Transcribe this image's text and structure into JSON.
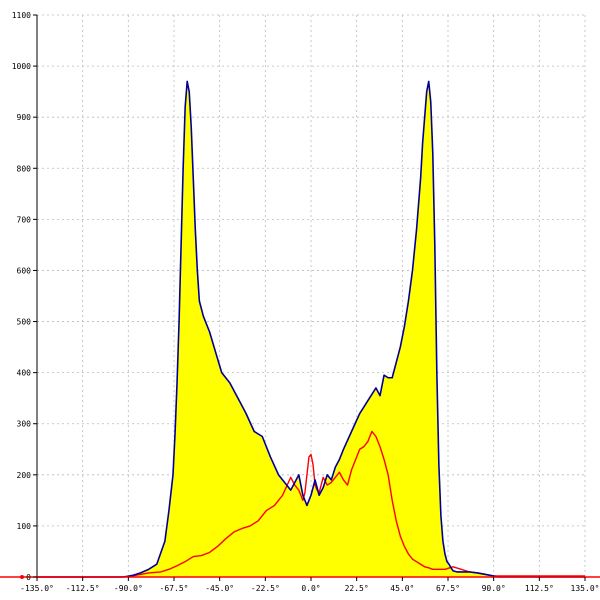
{
  "chart_data": {
    "type": "area",
    "title": "",
    "xlabel": "",
    "ylabel": "",
    "x_unit": "°",
    "xlim": [
      -135,
      135
    ],
    "ylim": [
      0,
      1100
    ],
    "x_ticks": [
      -135,
      -112.5,
      -90,
      -67.5,
      -45,
      -22.5,
      0,
      22.5,
      45,
      67.5,
      90,
      112.5,
      135
    ],
    "x_tick_labels": [
      "-135.0°",
      "-112.5°",
      "-90.0°",
      "-67.5°",
      "-45.0°",
      "-22.5°",
      "0.0°",
      "22.5°",
      "45.0°",
      "67.5°",
      "90.0°",
      "112.5°",
      "135.0°"
    ],
    "y_ticks": [
      0,
      100,
      200,
      300,
      400,
      500,
      600,
      700,
      800,
      900,
      1000,
      1100
    ],
    "y_tick_labels": [
      "0",
      "100",
      "200",
      "300",
      "400",
      "500",
      "600",
      "700",
      "800",
      "900",
      "1000",
      "1100"
    ],
    "grid": true,
    "legend": "none",
    "colors": {
      "fill": "#ffff00",
      "series1": "#000099",
      "series2": "#ff0000"
    },
    "series": [
      {
        "x": [
          -135,
          -92,
          -88,
          -84,
          -80,
          -76,
          -72,
          -70,
          -68,
          -67,
          -66,
          -65,
          -64,
          -63,
          -62,
          -61,
          -60,
          -59,
          -58,
          -57,
          -56,
          -55,
          -53,
          -50,
          -47,
          -44,
          -40,
          -36,
          -32,
          -28,
          -24,
          -20,
          -16,
          -12,
          -10,
          -8,
          -6,
          -4,
          -2,
          0,
          2,
          4,
          6,
          8,
          10,
          12,
          14,
          16,
          20,
          24,
          28,
          32,
          34,
          36,
          38,
          40,
          42,
          44,
          46,
          48,
          50,
          52,
          54,
          55,
          56,
          57,
          58,
          59,
          60,
          61,
          62,
          63,
          64,
          65,
          66,
          67,
          68,
          69,
          70,
          72,
          74,
          78,
          82,
          86,
          90,
          92,
          135
        ],
        "values": [
          0,
          0,
          3,
          8,
          15,
          25,
          70,
          130,
          200,
          280,
          380,
          500,
          650,
          800,
          920,
          970,
          950,
          880,
          780,
          680,
          600,
          540,
          510,
          480,
          440,
          400,
          380,
          350,
          320,
          285,
          275,
          235,
          200,
          180,
          170,
          185,
          200,
          160,
          140,
          160,
          190,
          160,
          175,
          200,
          190,
          215,
          230,
          250,
          285,
          320,
          345,
          370,
          355,
          395,
          390,
          390,
          420,
          450,
          490,
          540,
          600,
          680,
          780,
          850,
          900,
          950,
          970,
          930,
          830,
          650,
          400,
          220,
          120,
          70,
          45,
          30,
          25,
          18,
          12,
          10,
          10,
          10,
          8,
          5,
          2,
          0,
          0
        ]
      },
      {
        "x": [
          -135,
          -94,
          -88,
          -84,
          -80,
          -74,
          -70,
          -66,
          -62,
          -58,
          -54,
          -50,
          -46,
          -42,
          -38,
          -34,
          -30,
          -26,
          -22,
          -18,
          -14,
          -10,
          -8,
          -6,
          -5,
          -4,
          -3,
          -2,
          -1,
          0,
          1,
          2,
          3,
          4,
          5,
          6,
          8,
          10,
          12,
          14,
          16,
          18,
          20,
          22,
          24,
          26,
          28,
          30,
          32,
          34,
          36,
          38,
          40,
          42,
          44,
          46,
          48,
          50,
          52,
          54,
          56,
          58,
          60,
          62,
          66,
          70,
          74,
          78,
          82,
          86,
          90,
          135
        ],
        "values": [
          0,
          0,
          2,
          5,
          8,
          10,
          15,
          22,
          30,
          40,
          42,
          48,
          60,
          75,
          88,
          95,
          100,
          110,
          130,
          140,
          160,
          195,
          180,
          170,
          160,
          150,
          165,
          200,
          235,
          240,
          220,
          180,
          170,
          165,
          180,
          195,
          180,
          185,
          195,
          205,
          190,
          180,
          210,
          230,
          250,
          255,
          265,
          285,
          275,
          255,
          230,
          200,
          150,
          110,
          80,
          60,
          45,
          35,
          30,
          25,
          20,
          18,
          15,
          15,
          15,
          20,
          15,
          10,
          8,
          5,
          2,
          2
        ]
      }
    ]
  }
}
